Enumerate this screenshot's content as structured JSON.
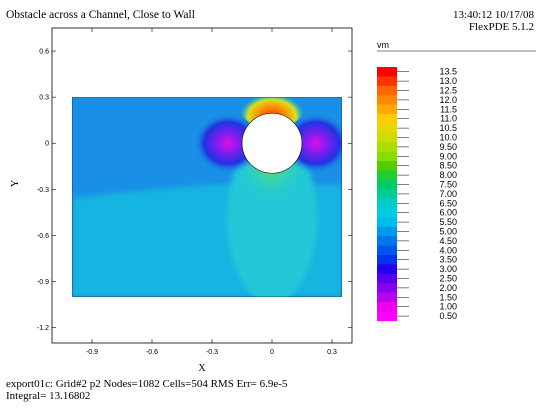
{
  "header": {
    "title": "Obstacle across a Channel, Close to Wall",
    "timestamp": "13:40:12 10/17/08",
    "version": "FlexPDE 5.1.2"
  },
  "footer": {
    "line1": "export01c:  Grid#2  p2  Nodes=1082 Cells=504 RMS Err= 6.9e-5",
    "line2": "Integral=  13.16802"
  },
  "chart_data": {
    "type": "heatmap",
    "title": "Obstacle across a Channel, Close to Wall",
    "xlabel": "X",
    "ylabel": "Y",
    "xlim": [
      -1.1,
      0.4
    ],
    "ylim": [
      -1.3,
      0.75
    ],
    "xticks": [
      "-0.9",
      "-0.6",
      "-0.3",
      "0",
      "0.3"
    ],
    "xtick_values": [
      -0.9,
      -0.6,
      -0.3,
      0,
      0.3
    ],
    "yticks": [
      "0.6",
      "0.3",
      "0",
      "-0.3",
      "-0.6",
      "-0.9",
      "-1.2"
    ],
    "ytick_values": [
      0.6,
      0.3,
      0,
      -0.3,
      -0.6,
      -0.9,
      -1.2
    ],
    "domain": {
      "x": [
        -1.0,
        0.35
      ],
      "y": [
        -1.0,
        0.3
      ]
    },
    "obstacle": {
      "cx": 0,
      "cy": 0,
      "r": 0.15
    },
    "variable": "vm",
    "legend_levels": [
      "13.5",
      "13.0",
      "12.5",
      "12.0",
      "11.5",
      "11.0",
      "10.5",
      "10.0",
      "9.50",
      "9.00",
      "8.50",
      "8.00",
      "7.50",
      "7.00",
      "6.50",
      "6.00",
      "5.50",
      "5.00",
      "4.50",
      "4.00",
      "3.50",
      "3.00",
      "2.50",
      "2.00",
      "1.50",
      "1.00",
      "0.50"
    ],
    "legend_colors": [
      "#ff0000",
      "#ff3300",
      "#ff6600",
      "#ff8800",
      "#ffaa00",
      "#ffcc00",
      "#e6d800",
      "#ccdd00",
      "#aadd00",
      "#88dd00",
      "#55cc00",
      "#22cc33",
      "#00cc66",
      "#00cc99",
      "#00cccc",
      "#00cce0",
      "#00bbee",
      "#0099ee",
      "#0077ee",
      "#0055ee",
      "#0033ee",
      "#2200ee",
      "#5500ee",
      "#8800ee",
      "#bb00ee",
      "#ee00ee",
      "#ff00ff"
    ],
    "field_colors": {
      "background": "#1a8fe6",
      "lower": "#13b4e0",
      "wake": "#20c8d8",
      "near_body": "#3ad4a8",
      "accent_green": "#7ed84a",
      "accent_yellow": "#d8e020",
      "hot": "#ff8800",
      "hotter": "#ff3300",
      "dark_blue": "#1f33e0",
      "violet": "#7a1ef0",
      "magenta": "#e010e8"
    }
  }
}
